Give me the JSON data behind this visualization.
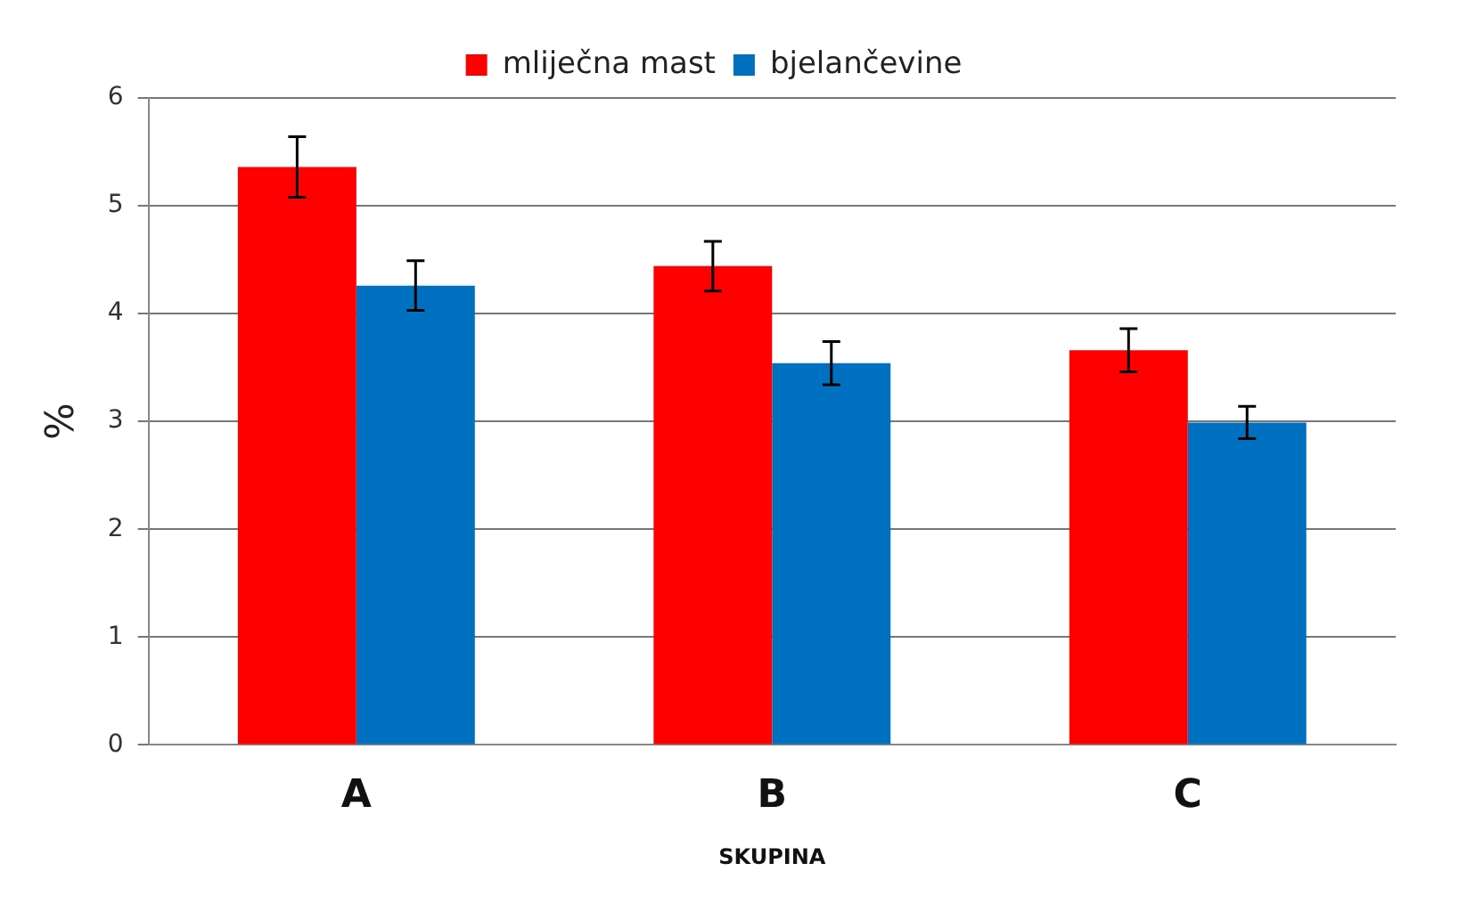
{
  "chart_data": {
    "type": "bar",
    "xlabel": "SKUPINA",
    "ylabel": "%",
    "categories": [
      "A",
      "B",
      "C"
    ],
    "series": [
      {
        "name": "mliječna mast",
        "color": "#ff0000",
        "values": [
          5.36,
          4.44,
          3.66
        ],
        "errors": [
          0.28,
          0.23,
          0.2
        ]
      },
      {
        "name": "bjelančevine",
        "color": "#0070c0",
        "values": [
          4.26,
          3.54,
          2.99
        ],
        "errors": [
          0.23,
          0.2,
          0.15
        ]
      }
    ],
    "ylim": [
      0,
      6
    ],
    "yticks": [
      0,
      1,
      2,
      3,
      4,
      5,
      6
    ],
    "grid": "y",
    "legend": "top"
  }
}
